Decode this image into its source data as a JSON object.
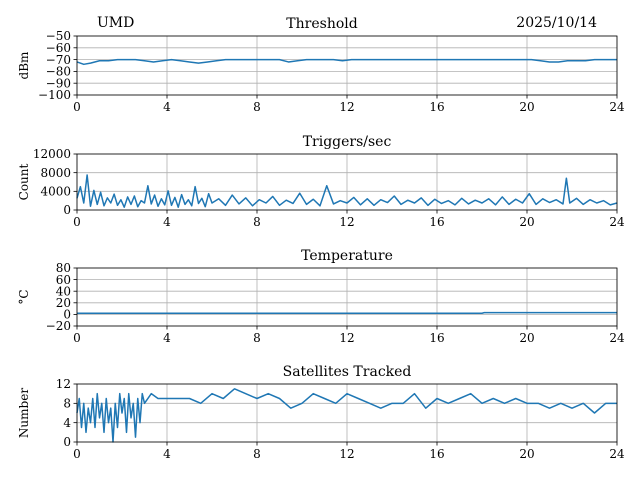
{
  "header": {
    "station": "UMD",
    "date": "2025/10/14"
  },
  "chart_data": [
    {
      "type": "line",
      "title": "Threshold",
      "ylabel": "dBm",
      "xlim": [
        0,
        24
      ],
      "ylim": [
        -100,
        -50
      ],
      "xticks": [
        0,
        4,
        8,
        12,
        16,
        20,
        24
      ],
      "yticks": [
        -100,
        -90,
        -80,
        -70,
        -60,
        -50
      ],
      "ytick_labels": [
        "−100",
        "−90",
        "−80",
        "−70",
        "−60",
        "−50"
      ],
      "grid": true,
      "series": [
        {
          "color": "#1f77b4",
          "x": [
            0,
            0.3,
            0.6,
            1,
            1.4,
            1.8,
            2.2,
            2.6,
            3,
            3.4,
            3.8,
            4.2,
            4.6,
            5,
            5.4,
            5.8,
            6.2,
            6.6,
            7,
            7.4,
            7.8,
            8.2,
            8.6,
            9,
            9.4,
            9.8,
            10.2,
            10.6,
            11,
            11.4,
            11.8,
            12.2,
            12.6,
            13,
            13.4,
            13.8,
            14.2,
            14.6,
            15,
            15.4,
            15.8,
            16.2,
            16.6,
            17,
            17.4,
            17.8,
            18.2,
            18.6,
            19,
            19.4,
            19.8,
            20.2,
            20.6,
            21,
            21.4,
            21.8,
            22.2,
            22.6,
            23,
            23.4,
            23.8,
            24
          ],
          "y": [
            -72,
            -74,
            -73,
            -71,
            -71,
            -70,
            -70,
            -70,
            -71,
            -72,
            -71,
            -70,
            -71,
            -72,
            -73,
            -72,
            -71,
            -70,
            -70,
            -70,
            -70,
            -70,
            -70,
            -70,
            -72,
            -71,
            -70,
            -70,
            -70,
            -70,
            -71,
            -70,
            -70,
            -70,
            -70,
            -70,
            -70,
            -70,
            -70,
            -70,
            -70,
            -70,
            -70,
            -70,
            -70,
            -70,
            -70,
            -70,
            -70,
            -70,
            -70,
            -70,
            -71,
            -72,
            -72,
            -71,
            -71,
            -71,
            -70,
            -70,
            -70,
            -70
          ]
        }
      ]
    },
    {
      "type": "line",
      "title": "Triggers/sec",
      "ylabel": "Count",
      "xlim": [
        0,
        24
      ],
      "ylim": [
        0,
        12000
      ],
      "xticks": [
        0,
        4,
        8,
        12,
        16,
        20,
        24
      ],
      "yticks": [
        0,
        4000,
        8000,
        12000
      ],
      "grid": true,
      "series": [
        {
          "color": "#1f77b4",
          "x": [
            0,
            0.15,
            0.3,
            0.45,
            0.6,
            0.75,
            0.9,
            1.05,
            1.2,
            1.35,
            1.5,
            1.65,
            1.8,
            1.95,
            2.1,
            2.25,
            2.4,
            2.55,
            2.7,
            2.85,
            3,
            3.15,
            3.3,
            3.45,
            3.6,
            3.75,
            3.9,
            4.05,
            4.2,
            4.35,
            4.5,
            4.65,
            4.8,
            4.95,
            5.1,
            5.25,
            5.4,
            5.55,
            5.7,
            5.85,
            6,
            6.3,
            6.6,
            6.9,
            7.2,
            7.5,
            7.8,
            8.1,
            8.4,
            8.7,
            9,
            9.3,
            9.6,
            9.9,
            10.2,
            10.5,
            10.8,
            11.1,
            11.4,
            11.7,
            12,
            12.3,
            12.6,
            12.9,
            13.2,
            13.5,
            13.8,
            14.1,
            14.4,
            14.7,
            15,
            15.3,
            15.6,
            15.9,
            16.2,
            16.5,
            16.8,
            17.1,
            17.4,
            17.7,
            18,
            18.3,
            18.6,
            18.9,
            19.2,
            19.5,
            19.8,
            20.1,
            20.4,
            20.7,
            21,
            21.3,
            21.6,
            21.75,
            21.9,
            22.2,
            22.5,
            22.8,
            23.1,
            23.4,
            23.7,
            24
          ],
          "y": [
            2500,
            5000,
            1500,
            7500,
            800,
            4200,
            1200,
            3800,
            900,
            2600,
            1500,
            3400,
            1000,
            2200,
            600,
            2800,
            1200,
            3000,
            700,
            2000,
            1500,
            5200,
            1300,
            3200,
            800,
            2400,
            1100,
            4100,
            1000,
            2700,
            600,
            3300,
            1200,
            2200,
            900,
            5000,
            1400,
            2500,
            700,
            3500,
            1500,
            2400,
            1000,
            3200,
            1300,
            2600,
            900,
            2200,
            1500,
            2900,
            1000,
            2100,
            1400,
            3600,
            1200,
            2300,
            900,
            5200,
            1300,
            2000,
            1500,
            2700,
            1100,
            2400,
            1000,
            2200,
            1600,
            3000,
            1200,
            2100,
            1500,
            2600,
            1000,
            2300,
            1400,
            2000,
            1100,
            2500,
            1300,
            2100,
            1500,
            2400,
            1100,
            2800,
            1200,
            2300,
            1500,
            3500,
            1200,
            2400,
            1600,
            2200,
            1300,
            6800,
            1500,
            2500,
            1200,
            2200,
            1500,
            2000,
            1100,
            1500
          ]
        }
      ]
    },
    {
      "type": "line",
      "title": "Temperature",
      "ylabel": "°C",
      "xlim": [
        0,
        24
      ],
      "ylim": [
        -20,
        80
      ],
      "xticks": [
        0,
        4,
        8,
        12,
        16,
        20,
        24
      ],
      "yticks": [
        -20,
        0,
        20,
        40,
        60,
        80
      ],
      "ytick_labels": [
        "−20",
        "0",
        "20",
        "40",
        "60",
        "80"
      ],
      "grid": true,
      "series": [
        {
          "color": "#1f77b4",
          "x": [
            0,
            4,
            8,
            12,
            16,
            18,
            18.1,
            20,
            24
          ],
          "y": [
            2,
            2,
            2,
            2,
            2,
            2,
            3,
            3,
            3
          ]
        }
      ]
    },
    {
      "type": "line",
      "title": "Satellites Tracked",
      "ylabel": "Number",
      "xlim": [
        0,
        24
      ],
      "ylim": [
        0,
        12
      ],
      "xticks": [
        0,
        4,
        8,
        12,
        16,
        20,
        24
      ],
      "yticks": [
        0,
        4,
        8,
        12
      ],
      "grid": true,
      "series": [
        {
          "color": "#1f77b4",
          "x": [
            0,
            0.1,
            0.2,
            0.3,
            0.4,
            0.5,
            0.6,
            0.7,
            0.8,
            0.9,
            1.0,
            1.1,
            1.2,
            1.3,
            1.4,
            1.5,
            1.6,
            1.7,
            1.8,
            1.9,
            2.0,
            2.1,
            2.2,
            2.3,
            2.4,
            2.5,
            2.6,
            2.7,
            2.8,
            2.9,
            3.0,
            3.3,
            3.6,
            4,
            4.5,
            5,
            5.5,
            6,
            6.5,
            7,
            7.5,
            8,
            8.5,
            9,
            9.5,
            10,
            10.5,
            11,
            11.5,
            12,
            12.5,
            13,
            13.5,
            14,
            14.5,
            15,
            15.5,
            16,
            16.5,
            17,
            17.5,
            18,
            18.5,
            19,
            19.5,
            20,
            20.5,
            21,
            21.5,
            22,
            22.5,
            23,
            23.5,
            24
          ],
          "y": [
            6,
            9,
            3,
            8,
            2,
            7,
            4,
            9,
            3,
            10,
            5,
            8,
            2,
            9,
            4,
            7,
            0,
            8,
            3,
            10,
            6,
            9,
            2,
            10,
            5,
            8,
            1,
            9,
            4,
            10,
            8,
            10,
            9,
            9,
            9,
            9,
            8,
            10,
            9,
            11,
            10,
            9,
            10,
            9,
            7,
            8,
            10,
            9,
            8,
            10,
            9,
            8,
            7,
            8,
            8,
            10,
            7,
            9,
            8,
            9,
            10,
            8,
            9,
            8,
            9,
            8,
            8,
            7,
            8,
            7,
            8,
            6,
            8,
            8
          ]
        }
      ]
    }
  ]
}
